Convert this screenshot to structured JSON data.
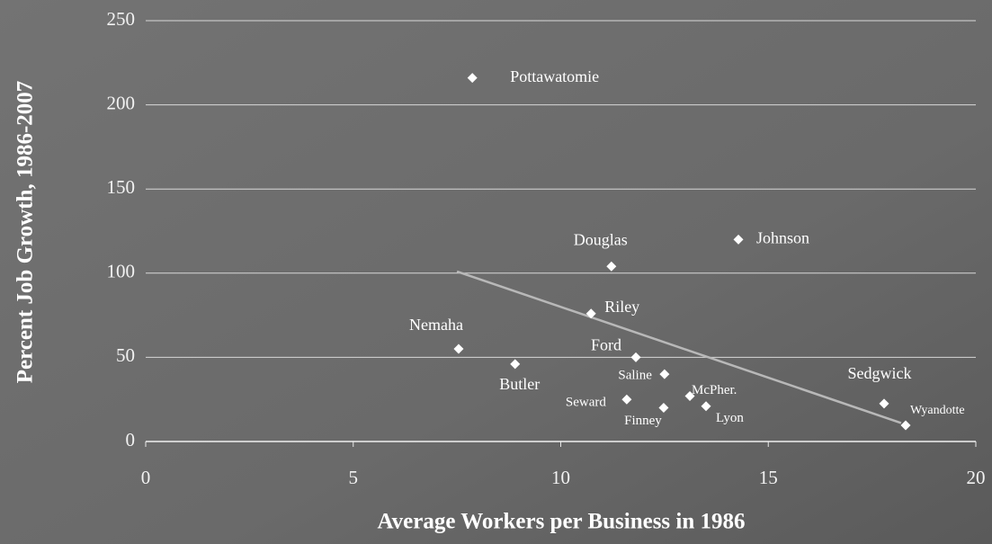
{
  "chart_data": {
    "type": "scatter",
    "x_label": "Average Workers per Business in 1986",
    "y_label": "Percent Job Growth, 1986-2007",
    "xlim": [
      0,
      20
    ],
    "xticks": [
      0,
      5,
      10,
      15,
      20
    ],
    "ylim": [
      0,
      250
    ],
    "yticks": [
      0,
      50,
      100,
      150,
      200,
      250
    ],
    "grid": true,
    "color": "#ffffff",
    "series": [
      {
        "labels": [
          "Pottawatomie",
          "Douglas",
          "Johnson",
          "Riley",
          "Nemaha",
          "Butler",
          "Ford",
          "Saline",
          "Seward",
          "McPher.",
          "Finney",
          "Lyon",
          "Sedgwick",
          "Wyandotte"
        ],
        "x": [
          7.87,
          11.22,
          14.28,
          10.73,
          7.54,
          8.9,
          11.81,
          12.5,
          11.59,
          13.11,
          12.48,
          13.5,
          17.79,
          18.31
        ],
        "values": [
          216,
          104,
          120,
          76,
          55,
          46,
          50,
          40,
          25,
          27,
          20,
          21,
          22.5,
          9.6
        ]
      }
    ],
    "trendline": {
      "x": [
        7.5,
        18.2
      ],
      "values": [
        101,
        11
      ],
      "color": "#b8b8b8"
    }
  }
}
